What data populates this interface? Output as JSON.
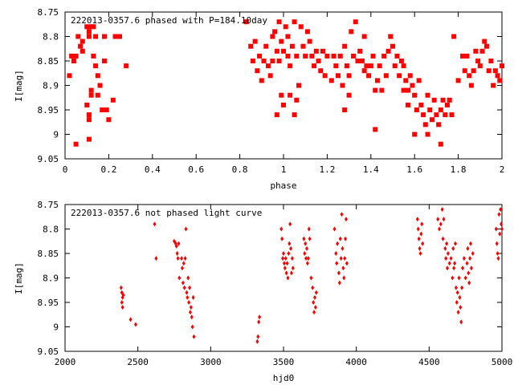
{
  "chart_data": [
    {
      "type": "scatter",
      "title": "222013-0357.6 phased with P=184.10day",
      "xlabel": "phase",
      "ylabel": "I[mag]",
      "xlim": [
        0,
        2
      ],
      "ylim": [
        9.05,
        8.75
      ],
      "y_inverted": true,
      "x_ticks": [
        "0",
        "0.2",
        "0.4",
        "0.6",
        "0.8",
        "1",
        "1.2",
        "1.4",
        "1.6",
        "1.8",
        "2"
      ],
      "y_ticks": [
        "8.75",
        "8.8",
        "8.85",
        "8.9",
        "8.95",
        "9",
        "9.05"
      ],
      "grid": false,
      "legend": "none",
      "marker": "square",
      "color": "#ff0000",
      "points": [
        [
          0.02,
          8.88
        ],
        [
          0.03,
          8.84
        ],
        [
          0.04,
          8.85
        ],
        [
          0.05,
          8.84
        ],
        [
          0.06,
          8.8
        ],
        [
          0.07,
          8.82
        ],
        [
          0.08,
          8.83
        ],
        [
          0.08,
          8.81
        ],
        [
          0.1,
          8.78
        ],
        [
          0.11,
          8.8
        ],
        [
          0.11,
          8.79
        ],
        [
          0.12,
          8.78
        ],
        [
          0.13,
          8.78
        ],
        [
          0.14,
          8.8
        ],
        [
          0.1,
          8.94
        ],
        [
          0.11,
          8.96
        ],
        [
          0.11,
          8.97
        ],
        [
          0.12,
          8.91
        ],
        [
          0.13,
          8.84
        ],
        [
          0.14,
          8.86
        ],
        [
          0.15,
          8.88
        ],
        [
          0.15,
          8.92
        ],
        [
          0.16,
          8.9
        ],
        [
          0.17,
          8.95
        ],
        [
          0.18,
          8.85
        ],
        [
          0.18,
          8.8
        ],
        [
          0.19,
          8.95
        ],
        [
          0.2,
          8.97
        ],
        [
          0.22,
          8.93
        ],
        [
          0.23,
          8.8
        ],
        [
          0.25,
          8.8
        ],
        [
          0.28,
          8.86
        ],
        [
          0.12,
          8.92
        ],
        [
          0.11,
          9.01
        ],
        [
          0.05,
          9.02
        ],
        [
          0.83,
          8.77
        ],
        [
          0.85,
          8.82
        ],
        [
          0.86,
          8.85
        ],
        [
          0.87,
          8.81
        ],
        [
          0.88,
          8.87
        ],
        [
          0.89,
          8.84
        ],
        [
          0.9,
          8.89
        ],
        [
          0.91,
          8.85
        ],
        [
          0.92,
          8.82
        ],
        [
          0.93,
          8.86
        ],
        [
          0.94,
          8.88
        ],
        [
          0.95,
          8.85
        ],
        [
          0.95,
          8.8
        ],
        [
          0.96,
          8.79
        ],
        [
          0.97,
          8.83
        ],
        [
          0.98,
          8.85
        ],
        [
          0.98,
          8.77
        ],
        [
          0.99,
          8.81
        ],
        [
          1.0,
          8.83
        ],
        [
          1.01,
          8.78
        ],
        [
          1.02,
          8.84
        ],
        [
          1.02,
          8.8
        ],
        [
          1.03,
          8.86
        ],
        [
          1.04,
          8.82
        ],
        [
          1.05,
          8.77
        ],
        [
          1.06,
          8.84
        ],
        [
          1.07,
          8.9
        ],
        [
          1.08,
          8.78
        ],
        [
          1.09,
          8.82
        ],
        [
          1.1,
          8.84
        ],
        [
          1.11,
          8.79
        ],
        [
          1.12,
          8.81
        ],
        [
          1.13,
          8.84
        ],
        [
          1.14,
          8.86
        ],
        [
          1.15,
          8.83
        ],
        [
          1.16,
          8.85
        ],
        [
          1.17,
          8.87
        ],
        [
          1.18,
          8.83
        ],
        [
          1.19,
          8.88
        ],
        [
          1.2,
          8.84
        ],
        [
          0.99,
          8.92
        ],
        [
          1.0,
          8.94
        ],
        [
          1.03,
          8.92
        ],
        [
          1.05,
          8.96
        ],
        [
          1.06,
          8.93
        ],
        [
          0.97,
          8.96
        ],
        [
          1.22,
          8.89
        ],
        [
          1.23,
          8.84
        ],
        [
          1.24,
          8.86
        ],
        [
          1.25,
          8.88
        ],
        [
          1.26,
          8.84
        ],
        [
          1.27,
          8.9
        ],
        [
          1.28,
          8.82
        ],
        [
          1.29,
          8.86
        ],
        [
          1.3,
          8.88
        ],
        [
          1.31,
          8.79
        ],
        [
          1.32,
          8.84
        ],
        [
          1.33,
          8.77
        ],
        [
          1.34,
          8.85
        ],
        [
          1.35,
          8.83
        ],
        [
          1.36,
          8.85
        ],
        [
          1.37,
          8.87
        ],
        [
          1.38,
          8.86
        ],
        [
          1.39,
          8.88
        ],
        [
          1.4,
          8.86
        ],
        [
          1.41,
          8.84
        ],
        [
          1.42,
          8.91
        ],
        [
          1.43,
          8.89
        ],
        [
          1.44,
          8.86
        ],
        [
          1.45,
          8.91
        ],
        [
          1.46,
          8.84
        ],
        [
          1.47,
          8.88
        ],
        [
          1.48,
          8.83
        ],
        [
          1.49,
          8.8
        ],
        [
          1.5,
          8.82
        ],
        [
          1.51,
          8.86
        ],
        [
          1.52,
          8.84
        ],
        [
          1.53,
          8.88
        ],
        [
          1.42,
          8.99
        ],
        [
          1.3,
          8.92
        ],
        [
          1.28,
          8.95
        ],
        [
          1.37,
          8.8
        ],
        [
          1.54,
          8.85
        ],
        [
          1.55,
          8.86
        ],
        [
          1.56,
          8.89
        ],
        [
          1.57,
          8.91
        ],
        [
          1.58,
          8.88
        ],
        [
          1.59,
          8.9
        ],
        [
          1.6,
          8.92
        ],
        [
          1.61,
          8.95
        ],
        [
          1.62,
          8.89
        ],
        [
          1.63,
          8.94
        ],
        [
          1.64,
          8.96
        ],
        [
          1.65,
          8.98
        ],
        [
          1.66,
          8.92
        ],
        [
          1.67,
          8.95
        ],
        [
          1.68,
          8.97
        ],
        [
          1.69,
          8.93
        ],
        [
          1.7,
          8.96
        ],
        [
          1.71,
          8.98
        ],
        [
          1.72,
          8.95
        ],
        [
          1.73,
          8.93
        ],
        [
          1.74,
          8.96
        ],
        [
          1.75,
          8.94
        ],
        [
          1.76,
          8.93
        ],
        [
          1.77,
          8.96
        ],
        [
          1.6,
          9.0
        ],
        [
          1.66,
          9.0
        ],
        [
          1.72,
          9.02
        ],
        [
          1.57,
          8.94
        ],
        [
          1.55,
          8.91
        ],
        [
          1.78,
          8.8
        ],
        [
          1.8,
          8.89
        ],
        [
          1.82,
          8.84
        ],
        [
          1.83,
          8.87
        ],
        [
          1.84,
          8.84
        ],
        [
          1.85,
          8.88
        ],
        [
          1.86,
          8.9
        ],
        [
          1.87,
          8.87
        ],
        [
          1.88,
          8.83
        ],
        [
          1.89,
          8.85
        ],
        [
          1.9,
          8.86
        ],
        [
          1.91,
          8.83
        ],
        [
          1.92,
          8.81
        ],
        [
          1.93,
          8.82
        ],
        [
          1.94,
          8.87
        ],
        [
          1.95,
          8.85
        ],
        [
          1.96,
          8.9
        ],
        [
          1.97,
          8.87
        ],
        [
          1.98,
          8.88
        ],
        [
          1.99,
          8.89
        ],
        [
          2.0,
          8.86
        ]
      ]
    },
    {
      "type": "scatter",
      "title": "222013-0357.6 not phased light curve",
      "xlabel": "hjd0",
      "ylabel": "I[mag]",
      "xlim": [
        2000,
        5000
      ],
      "ylim": [
        9.05,
        8.75
      ],
      "y_inverted": true,
      "x_ticks": [
        "2000",
        "2500",
        "3000",
        "3500",
        "4000",
        "4500",
        "5000"
      ],
      "y_ticks": [
        "8.75",
        "8.8",
        "8.85",
        "8.9",
        "8.95",
        "9",
        "9.05"
      ],
      "grid": false,
      "legend": "none",
      "marker": "diamond",
      "color": "#ff0000",
      "points": [
        [
          2385,
          8.92
        ],
        [
          2390,
          8.93
        ],
        [
          2395,
          8.94
        ],
        [
          2400,
          8.935
        ],
        [
          2390,
          8.95
        ],
        [
          2395,
          8.96
        ],
        [
          2450,
          8.985
        ],
        [
          2485,
          8.995
        ],
        [
          2615,
          8.79
        ],
        [
          2625,
          8.86
        ],
        [
          2750,
          8.825
        ],
        [
          2760,
          8.83
        ],
        [
          2765,
          8.835
        ],
        [
          2770,
          8.85
        ],
        [
          2775,
          8.86
        ],
        [
          2780,
          8.83
        ],
        [
          2785,
          8.9
        ],
        [
          2800,
          8.86
        ],
        [
          2805,
          8.88
        ],
        [
          2810,
          8.91
        ],
        [
          2815,
          8.87
        ],
        [
          2820,
          8.92
        ],
        [
          2825,
          8.86
        ],
        [
          2830,
          8.8
        ],
        [
          2835,
          8.93
        ],
        [
          2840,
          8.94
        ],
        [
          2845,
          8.9
        ],
        [
          2850,
          8.95
        ],
        [
          2855,
          8.92
        ],
        [
          2860,
          8.97
        ],
        [
          2865,
          8.96
        ],
        [
          2870,
          8.98
        ],
        [
          2875,
          9.0
        ],
        [
          2880,
          8.94
        ],
        [
          2885,
          9.02
        ],
        [
          3320,
          9.03
        ],
        [
          3325,
          9.02
        ],
        [
          3330,
          8.99
        ],
        [
          3335,
          8.98
        ],
        [
          3485,
          8.8
        ],
        [
          3490,
          8.82
        ],
        [
          3495,
          8.86
        ],
        [
          3500,
          8.85
        ],
        [
          3505,
          8.87
        ],
        [
          3510,
          8.88
        ],
        [
          3515,
          8.86
        ],
        [
          3520,
          8.89
        ],
        [
          3525,
          8.87
        ],
        [
          3530,
          8.9
        ],
        [
          3535,
          8.85
        ],
        [
          3540,
          8.83
        ],
        [
          3545,
          8.79
        ],
        [
          3550,
          8.84
        ],
        [
          3555,
          8.89
        ],
        [
          3560,
          8.86
        ],
        [
          3565,
          8.88
        ],
        [
          3640,
          8.82
        ],
        [
          3645,
          8.85
        ],
        [
          3650,
          8.83
        ],
        [
          3655,
          8.86
        ],
        [
          3660,
          8.84
        ],
        [
          3665,
          8.87
        ],
        [
          3670,
          8.86
        ],
        [
          3675,
          8.8
        ],
        [
          3680,
          8.82
        ],
        [
          3690,
          8.9
        ],
        [
          3700,
          8.92
        ],
        [
          3705,
          8.95
        ],
        [
          3710,
          8.97
        ],
        [
          3715,
          8.94
        ],
        [
          3720,
          8.96
        ],
        [
          3725,
          8.93
        ],
        [
          3850,
          8.8
        ],
        [
          3860,
          8.85
        ],
        [
          3865,
          8.87
        ],
        [
          3870,
          8.83
        ],
        [
          3880,
          8.89
        ],
        [
          3885,
          8.91
        ],
        [
          3890,
          8.82
        ],
        [
          3895,
          8.86
        ],
        [
          3900,
          8.77
        ],
        [
          3905,
          8.84
        ],
        [
          3910,
          8.88
        ],
        [
          3915,
          8.9
        ],
        [
          3920,
          8.86
        ],
        [
          3925,
          8.82
        ],
        [
          3930,
          8.78
        ],
        [
          3935,
          8.87
        ],
        [
          4420,
          8.78
        ],
        [
          4425,
          8.8
        ],
        [
          4430,
          8.82
        ],
        [
          4435,
          8.84
        ],
        [
          4440,
          8.85
        ],
        [
          4445,
          8.81
        ],
        [
          4450,
          8.79
        ],
        [
          4455,
          8.83
        ],
        [
          4560,
          8.78
        ],
        [
          4570,
          8.8
        ],
        [
          4580,
          8.79
        ],
        [
          4590,
          8.76
        ],
        [
          4595,
          8.82
        ],
        [
          4600,
          8.78
        ],
        [
          4610,
          8.84
        ],
        [
          4615,
          8.86
        ],
        [
          4620,
          8.83
        ],
        [
          4625,
          8.88
        ],
        [
          4630,
          8.85
        ],
        [
          4640,
          8.87
        ],
        [
          4650,
          8.86
        ],
        [
          4660,
          8.9
        ],
        [
          4665,
          8.84
        ],
        [
          4670,
          8.88
        ],
        [
          4675,
          8.87
        ],
        [
          4680,
          8.83
        ],
        [
          4685,
          8.92
        ],
        [
          4690,
          8.95
        ],
        [
          4695,
          8.93
        ],
        [
          4700,
          8.97
        ],
        [
          4705,
          8.9
        ],
        [
          4710,
          8.94
        ],
        [
          4715,
          8.96
        ],
        [
          4720,
          8.99
        ],
        [
          4725,
          8.92
        ],
        [
          4730,
          8.88
        ],
        [
          4740,
          8.86
        ],
        [
          4750,
          8.9
        ],
        [
          4760,
          8.87
        ],
        [
          4765,
          8.84
        ],
        [
          4770,
          8.89
        ],
        [
          4775,
          8.91
        ],
        [
          4780,
          8.86
        ],
        [
          4785,
          8.83
        ],
        [
          4790,
          8.88
        ],
        [
          4800,
          8.85
        ],
        [
          4960,
          8.8
        ],
        [
          4965,
          8.83
        ],
        [
          4970,
          8.85
        ],
        [
          4975,
          8.86
        ],
        [
          4980,
          8.77
        ],
        [
          4985,
          8.81
        ],
        [
          4990,
          8.76
        ],
        [
          4995,
          8.79
        ],
        [
          5000,
          8.8
        ]
      ]
    }
  ]
}
